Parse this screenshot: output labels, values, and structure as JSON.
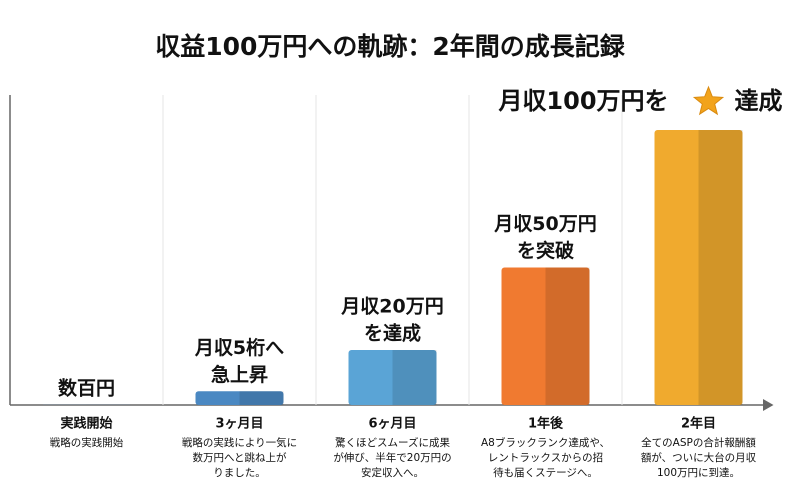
{
  "chart_data": {
    "type": "bar",
    "title": "収益100万円への軌跡：2年間の成長記録",
    "categories": [
      "実践開始",
      "3ヶ月目",
      "6ヶ月目",
      "1年後",
      "2年目"
    ],
    "descriptions": [
      [
        "戦略の実践開始"
      ],
      [
        "戦略の実践により一気に",
        "数万円へと跳ね上が",
        "りました。"
      ],
      [
        "驚くほどスムーズに成果",
        "が伸び、半年で20万円の",
        "安定収入へ。"
      ],
      [
        "A8ブラックランク達成や、",
        "レントラックスからの招",
        "待も届くステージへ。"
      ],
      [
        "全てのASPの合計報酬額",
        "額が、ついに大台の月収",
        "100万円に到達。"
      ]
    ],
    "values": [
      0.05,
      5,
      20,
      50,
      100
    ],
    "annotations": [
      [
        "数百円"
      ],
      [
        "月収5桁へ",
        "急上昇"
      ],
      [
        "月収20万円",
        "を達成"
      ],
      [
        "月収50万円",
        "を突破"
      ],
      [
        "月収100万円を",
        "達成"
      ]
    ],
    "colors": [
      "#4f86c0",
      "#4a88c2",
      "#5aa4d6",
      "#f07a30",
      "#f0aa2e"
    ]
  }
}
